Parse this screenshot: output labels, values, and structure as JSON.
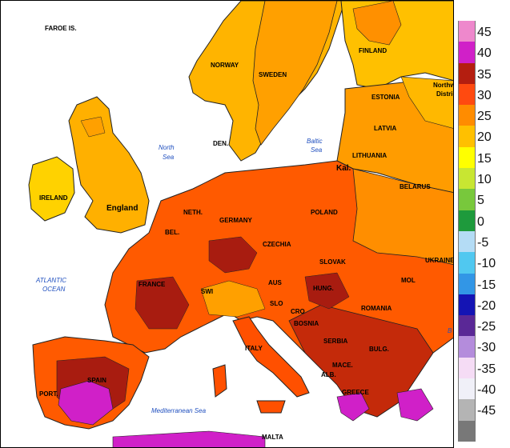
{
  "map": {
    "countries": [
      {
        "key": "faroe",
        "label": "FAROE IS."
      },
      {
        "key": "finland",
        "label": "FINLAND"
      },
      {
        "key": "norway",
        "label": "NORWAY"
      },
      {
        "key": "sweden",
        "label": "SWEDEN"
      },
      {
        "key": "estonia",
        "label": "ESTONIA"
      },
      {
        "key": "northwest",
        "label": "Northw"
      },
      {
        "key": "district",
        "label": "Distric"
      },
      {
        "key": "latvia",
        "label": "LATVIA"
      },
      {
        "key": "denmark",
        "label": "DEN."
      },
      {
        "key": "lithuania",
        "label": "LITHUANIA"
      },
      {
        "key": "kaliningrad",
        "label": "Kal."
      },
      {
        "key": "ireland",
        "label": "IRELAND"
      },
      {
        "key": "england",
        "label": "England"
      },
      {
        "key": "belarus",
        "label": "BELARUS"
      },
      {
        "key": "netherlands",
        "label": "NETH."
      },
      {
        "key": "germany",
        "label": "GERMANY"
      },
      {
        "key": "poland",
        "label": "POLAND"
      },
      {
        "key": "belgium",
        "label": "BEL."
      },
      {
        "key": "czechia",
        "label": "CZECHIA"
      },
      {
        "key": "slovakia",
        "label": "SLOVAK"
      },
      {
        "key": "ukraine",
        "label": "UKRAINE"
      },
      {
        "key": "france",
        "label": "FRANCE"
      },
      {
        "key": "austria",
        "label": "AUS"
      },
      {
        "key": "hungary",
        "label": "HUNG."
      },
      {
        "key": "moldova",
        "label": "MOL"
      },
      {
        "key": "switzerland",
        "label": "SWI"
      },
      {
        "key": "slovenia",
        "label": "SLO"
      },
      {
        "key": "croatia",
        "label": "CRO"
      },
      {
        "key": "romania",
        "label": "ROMANIA"
      },
      {
        "key": "bosnia",
        "label": "BOSNIA"
      },
      {
        "key": "italy",
        "label": "ITALY"
      },
      {
        "key": "serbia",
        "label": "SERBIA"
      },
      {
        "key": "bulgaria",
        "label": "BULG."
      },
      {
        "key": "spain",
        "label": "SPAIN"
      },
      {
        "key": "albania",
        "label": "ALB."
      },
      {
        "key": "macedonia",
        "label": "MACE."
      },
      {
        "key": "portugal",
        "label": "PORT."
      },
      {
        "key": "greece",
        "label": "GREECE"
      },
      {
        "key": "malta",
        "label": "MALTA"
      }
    ],
    "seas": [
      {
        "key": "north_sea_1",
        "label": "North"
      },
      {
        "key": "north_sea_2",
        "label": "Sea"
      },
      {
        "key": "baltic_1",
        "label": "Baltic"
      },
      {
        "key": "baltic_2",
        "label": "Sea"
      },
      {
        "key": "atlantic_1",
        "label": "ATLANTIC"
      },
      {
        "key": "atlantic_2",
        "label": "OCEAN"
      },
      {
        "key": "med",
        "label": "Mediterranean Sea"
      },
      {
        "key": "black_sea",
        "label": "B"
      }
    ],
    "colors": {
      "sea": "#ffffff",
      "t20": "#ffc800",
      "t25": "#ffa800",
      "t30": "#ff8a00",
      "t30b": "#ff5a00",
      "t35": "#ee4010",
      "t35b": "#c02a0a",
      "t40": "#a81c10",
      "t45": "#d020c8",
      "t50": "#ee80d0",
      "border": "#222222"
    }
  },
  "legend": {
    "title": "",
    "items": [
      {
        "label": "45",
        "color": "#ee88cc"
      },
      {
        "label": "40",
        "color": "#d020c8"
      },
      {
        "label": "35",
        "color": "#b41e10"
      },
      {
        "label": "30",
        "color": "#ff4a10"
      },
      {
        "label": "25",
        "color": "#ff8c00"
      },
      {
        "label": "20",
        "color": "#ffc000"
      },
      {
        "label": "15",
        "color": "#ffff00"
      },
      {
        "label": "10",
        "color": "#c8e632"
      },
      {
        "label": "5",
        "color": "#78c83c"
      },
      {
        "label": "0",
        "color": "#1e9a3c"
      },
      {
        "label": "-5",
        "color": "#b4dcf5"
      },
      {
        "label": "-10",
        "color": "#50c8f0"
      },
      {
        "label": "-15",
        "color": "#3296e6"
      },
      {
        "label": "-20",
        "color": "#1414b4"
      },
      {
        "label": "-25",
        "color": "#5a2896"
      },
      {
        "label": "-30",
        "color": "#b48cdc"
      },
      {
        "label": "-35",
        "color": "#f5dcf5"
      },
      {
        "label": "-40",
        "color": "#f0f0f8"
      },
      {
        "label": "-45",
        "color": "#b4b4b4"
      },
      {
        "label": "",
        "color": "#787878"
      }
    ]
  }
}
